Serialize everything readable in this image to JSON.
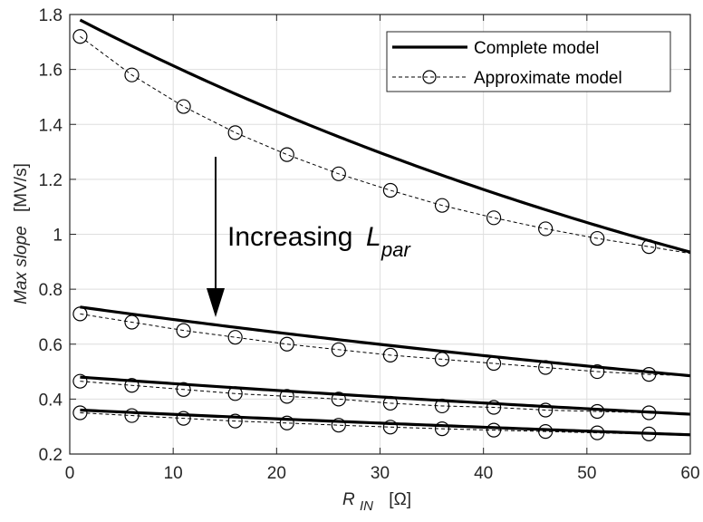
{
  "chart_data": {
    "type": "line",
    "title": "",
    "xlabel": {
      "main": "R",
      "sub": "IN",
      "unit": "[Ω]"
    },
    "ylabel": {
      "main": "Max slope",
      "unit": "[MV/s]"
    },
    "xlim": [
      0,
      60
    ],
    "ylim": [
      0.2,
      1.8
    ],
    "xticks": [
      0,
      10,
      20,
      30,
      40,
      50,
      60
    ],
    "yticks": [
      0.2,
      0.4,
      0.6,
      0.8,
      1,
      1.2,
      1.4,
      1.6,
      1.8
    ],
    "xtick_labels": [
      "0",
      "10",
      "20",
      "30",
      "40",
      "50",
      "60"
    ],
    "ytick_labels": [
      "0.2",
      "0.4",
      "0.6",
      "0.8",
      "1",
      "1.2",
      "1.4",
      "1.6",
      "1.8"
    ],
    "grid": true,
    "legend": {
      "position": "top-right",
      "entries": [
        {
          "label": "Complete model",
          "style": "thick-solid"
        },
        {
          "label": "Approximate model",
          "style": "dashed-circle"
        }
      ]
    },
    "annotation": {
      "text_main": "Increasing",
      "text_sym": "L",
      "text_sub": "par"
    },
    "complete_x": [
      1,
      60
    ],
    "approx_x": [
      1,
      6,
      11,
      16,
      21,
      26,
      31,
      36,
      41,
      46,
      51,
      56,
      60
    ],
    "groups": [
      {
        "complete_start": 1.78,
        "complete_end": 0.935,
        "approx": [
          1.72,
          1.58,
          1.465,
          1.37,
          1.29,
          1.22,
          1.16,
          1.105,
          1.06,
          1.02,
          0.985,
          0.955,
          0.93
        ]
      },
      {
        "complete_start": 0.735,
        "complete_end": 0.485,
        "approx": [
          0.71,
          0.68,
          0.65,
          0.625,
          0.6,
          0.58,
          0.56,
          0.545,
          0.53,
          0.515,
          0.5,
          0.49,
          0.485
        ]
      },
      {
        "complete_start": 0.48,
        "complete_end": 0.345,
        "approx": [
          0.465,
          0.45,
          0.435,
          0.42,
          0.41,
          0.4,
          0.385,
          0.375,
          0.37,
          0.36,
          0.355,
          0.35,
          0.345
        ]
      },
      {
        "complete_start": 0.36,
        "complete_end": 0.27,
        "approx": [
          0.35,
          0.34,
          0.33,
          0.32,
          0.313,
          0.305,
          0.298,
          0.292,
          0.287,
          0.282,
          0.277,
          0.273,
          0.27
        ]
      }
    ]
  }
}
